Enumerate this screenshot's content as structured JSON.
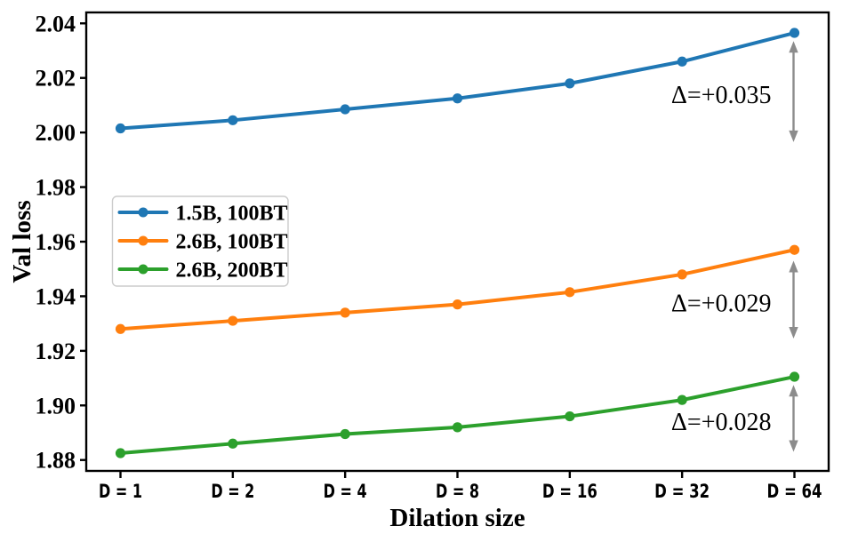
{
  "figure": {
    "background": "#ffffff",
    "axis_color": "#000000"
  },
  "chart_data": {
    "type": "line",
    "title": "",
    "xlabel": "Dilation size",
    "ylabel": "Val loss",
    "categories": [
      "D = 1",
      "D = 2",
      "D = 4",
      "D = 8",
      "D = 16",
      "D = 32",
      "D = 64"
    ],
    "dilation_values": [
      1,
      2,
      4,
      8,
      16,
      32,
      64
    ],
    "series": [
      {
        "name": "1.5B, 100BT",
        "color": "#1f77b4",
        "values": [
          2.0015,
          2.0045,
          2.0085,
          2.0125,
          2.018,
          2.026,
          2.0365
        ]
      },
      {
        "name": "2.6B, 100BT",
        "color": "#ff7f0e",
        "values": [
          1.928,
          1.931,
          1.934,
          1.937,
          1.9415,
          1.948,
          1.957
        ]
      },
      {
        "name": "2.6B, 200BT",
        "color": "#2ca02c",
        "values": [
          1.8825,
          1.886,
          1.8895,
          1.892,
          1.896,
          1.902,
          1.9105
        ]
      }
    ],
    "ylim": [
      1.876,
      2.044
    ],
    "y_ticks": [
      "1.88",
      "1.90",
      "1.92",
      "1.94",
      "1.96",
      "1.98",
      "2.00",
      "2.02",
      "2.04"
    ],
    "grid": false,
    "legend": {
      "position": "middle-left",
      "entries": [
        "1.5B, 100BT",
        "2.6B, 100BT",
        "2.6B, 200BT"
      ],
      "border_color": "#cccccc",
      "fill": "#ffffff"
    },
    "annotations": [
      {
        "text": "Δ=+0.035",
        "at_category": "D = 64",
        "arrow_top": 2.0335,
        "arrow_bottom": 1.9965
      },
      {
        "text": "Δ=+0.029",
        "at_category": "D = 64",
        "arrow_top": 1.953,
        "arrow_bottom": 1.9245
      },
      {
        "text": "Δ=+0.028",
        "at_category": "D = 64",
        "arrow_top": 1.9075,
        "arrow_bottom": 1.883
      }
    ],
    "annotation_color": "#8c8c8c"
  }
}
